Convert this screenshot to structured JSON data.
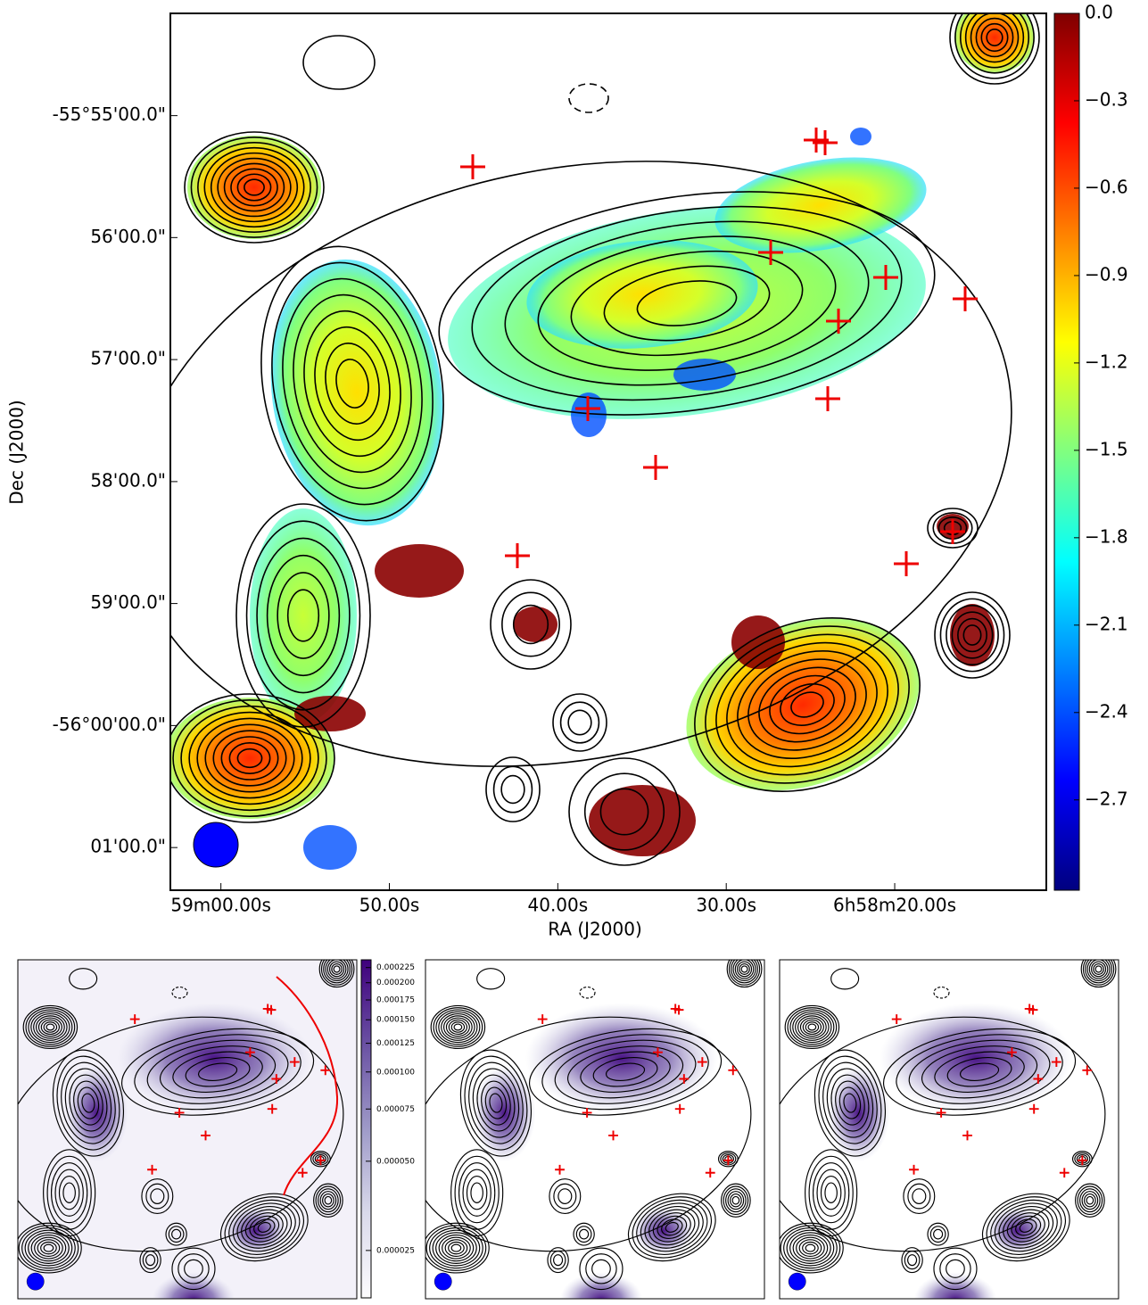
{
  "chart_data": [
    {
      "type": "image",
      "xlabel": "RA (J2000)",
      "ylabel": "Dec (J2000)",
      "xlim": [
        63.0,
        11.0
      ],
      "xticks": [
        {
          "value": 60,
          "label": "59m00.00s"
        },
        {
          "value": 50,
          "label": "50.00s"
        },
        {
          "value": 40,
          "label": "40.00s"
        },
        {
          "value": 30,
          "label": "30.00s"
        },
        {
          "value": 20,
          "label": "6h58m20.00s"
        }
      ],
      "ylim": [
        -56.0225,
        -55.9027
      ],
      "yticks": [
        {
          "value": -55.91667,
          "label": "-55°55'00.0\""
        },
        {
          "value": -55.93333,
          "label": "56'00.0\""
        },
        {
          "value": -55.95,
          "label": "57'00.0\""
        },
        {
          "value": -55.96667,
          "label": "58'00.0\""
        },
        {
          "value": -55.98333,
          "label": "59'00.0\""
        },
        {
          "value": -56.0,
          "label": "-56°00'00.0\""
        },
        {
          "value": -56.01667,
          "label": "01'00.0\""
        }
      ],
      "colorbar": {
        "lim": [
          -3.01,
          0.0
        ],
        "colormap": "jet",
        "scale": "linear",
        "ticks": [
          {
            "value": 0,
            "label": "0.0"
          },
          {
            "value": -0.3,
            "label": "−0.3"
          },
          {
            "value": -0.6,
            "label": "−0.6"
          },
          {
            "value": -0.9,
            "label": "−0.9"
          },
          {
            "value": -1.2,
            "label": "−1.2"
          },
          {
            "value": -1.5,
            "label": "−1.5"
          },
          {
            "value": -1.8,
            "label": "−1.8"
          },
          {
            "value": -2.1,
            "label": "−2.1"
          },
          {
            "value": -2.4,
            "label": "−2.4"
          },
          {
            "value": -2.7,
            "label": "−2.7"
          }
        ]
      }
    },
    {
      "type": "image",
      "colorbar": {
        "lim": [
          1.73e-05,
          0.000239
        ],
        "colormap": "Purples",
        "scale": "log",
        "ticks": [
          0.000225,
          {
            "value": 0.0002,
            "label": "0.000200"
          },
          0.000175,
          {
            "value": 0.00015,
            "label": "0.000150"
          },
          0.000125,
          {
            "value": 0.0001,
            "label": "0.000100"
          },
          {
            "value": 7.5e-05,
            "label": "0.000075"
          },
          {
            "value": 5e-05,
            "label": "0.000050"
          },
          {
            "value": 2.5e-05,
            "label": "0.000025"
          }
        ]
      }
    },
    {
      "type": "image",
      "colormap": "Purples"
    },
    {
      "type": "image",
      "colormap": "Purples"
    }
  ]
}
